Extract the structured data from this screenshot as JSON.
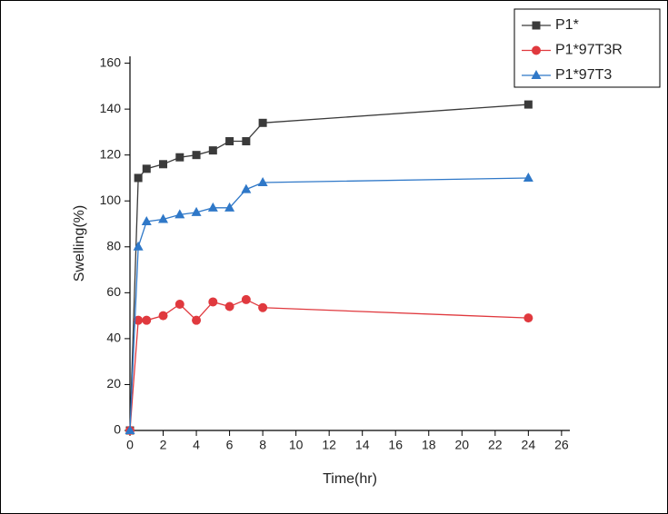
{
  "chart_data": {
    "type": "line",
    "x_label": "Time(hr)",
    "y_label": "Swelling(%)",
    "x": [
      0,
      0.5,
      1,
      2,
      3,
      4,
      5,
      6,
      7,
      8,
      24
    ],
    "series": [
      {
        "name": "P1*",
        "color": "#3a3a3a",
        "marker": "square",
        "values": [
          0,
          110,
          114,
          116,
          119,
          120,
          122,
          126,
          126,
          134,
          142
        ]
      },
      {
        "name": "P1*97T3R",
        "color": "#e0393e",
        "marker": "circle",
        "values": [
          0,
          48,
          48,
          50,
          55,
          48,
          56,
          54,
          57,
          53.5,
          49
        ]
      },
      {
        "name": "P1*97T3",
        "color": "#2f78c8",
        "marker": "triangle",
        "values": [
          0,
          80,
          91,
          92,
          94,
          95,
          97,
          97,
          105,
          108,
          110
        ]
      }
    ],
    "xlim": [
      0,
      26.5
    ],
    "ylim": [
      0,
      163
    ],
    "xticks": [
      0,
      2,
      4,
      6,
      8,
      10,
      12,
      14,
      16,
      18,
      20,
      22,
      24,
      26
    ],
    "yticks": [
      0,
      20,
      40,
      60,
      80,
      100,
      120,
      140,
      160
    ],
    "legend": "upper-right"
  }
}
